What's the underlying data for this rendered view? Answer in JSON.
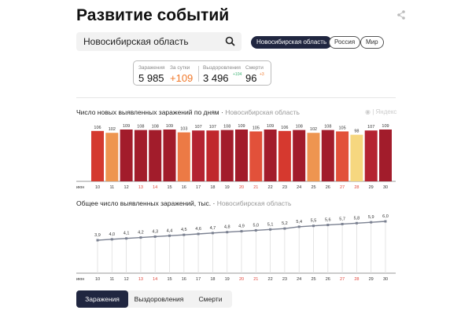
{
  "header": {
    "title": "Развитие событий",
    "share_icon": "share-icon"
  },
  "search": {
    "value": "Новосибирская область"
  },
  "regions": [
    "Новосибирская область",
    "Россия",
    "Мир"
  ],
  "stats": {
    "infected_label": "Заражения",
    "infected": "5 985",
    "day_label": "За сутки",
    "day": "+109",
    "recovered_label": "Выздоровления",
    "recovered": "3 496",
    "recovered_delta": "+104",
    "deaths_label": "Смерти",
    "deaths": "96",
    "deaths_delta": "+3",
    "colors": {
      "day": "#f0782a",
      "recovered_delta": "#3bb273",
      "deaths_delta": "#f0782a"
    }
  },
  "chart_data": [
    {
      "type": "bar",
      "title": "Число новых выявленных заражений по дням",
      "subtitle": "Новосибирская область",
      "watermark": "Яндекс",
      "month_label": "июн",
      "categories": [
        "10",
        "11",
        "12",
        "13",
        "14",
        "15",
        "16",
        "17",
        "18",
        "19",
        "20",
        "21",
        "22",
        "23",
        "24",
        "25",
        "26",
        "27",
        "28",
        "29",
        "30"
      ],
      "weekend": [
        "13",
        "14",
        "20",
        "21",
        "27",
        "28"
      ],
      "values": [
        106,
        102,
        109,
        108,
        108,
        109,
        103,
        107,
        107,
        108,
        109,
        105,
        109,
        106,
        108,
        102,
        108,
        105,
        98,
        107,
        109
      ],
      "colors": [
        "#d43a2f",
        "#ee9550",
        "#a21c2b",
        "#a21c2b",
        "#a21c2b",
        "#a21c2b",
        "#ec7a45",
        "#b42331",
        "#c0282d",
        "#a21c2b",
        "#a21c2b",
        "#e2513a",
        "#a21c2b",
        "#d6392f",
        "#a21c2b",
        "#ee9550",
        "#a21c2b",
        "#e2513a",
        "#f6d77f",
        "#b42331",
        "#a21c2b"
      ]
    },
    {
      "type": "line",
      "title": "Общее число выявленных заражений, тыс.",
      "subtitle": "Новосибирская область",
      "month_label": "июн",
      "categories": [
        "10",
        "11",
        "12",
        "13",
        "14",
        "15",
        "16",
        "17",
        "18",
        "19",
        "20",
        "21",
        "22",
        "23",
        "24",
        "25",
        "26",
        "27",
        "28",
        "29",
        "30"
      ],
      "values": [
        3.9,
        4.0,
        4.1,
        4.2,
        4.3,
        4.4,
        4.5,
        4.6,
        4.7,
        4.8,
        4.9,
        5.0,
        5.1,
        5.2,
        5.4,
        5.5,
        5.6,
        5.7,
        5.8,
        5.9,
        6.0
      ],
      "labels": [
        "3,9",
        "4,0",
        "4,1",
        "4,2",
        "4,3",
        "4,4",
        "4,5",
        "4,6",
        "4,7",
        "4,8",
        "4,9",
        "5,0",
        "5,1",
        "5,2",
        "5,4",
        "5,5",
        "5,6",
        "5,7",
        "5,8",
        "5,9",
        "6,0"
      ]
    }
  ],
  "tabs": [
    "Заражения",
    "Выздоровления",
    "Смерти"
  ]
}
